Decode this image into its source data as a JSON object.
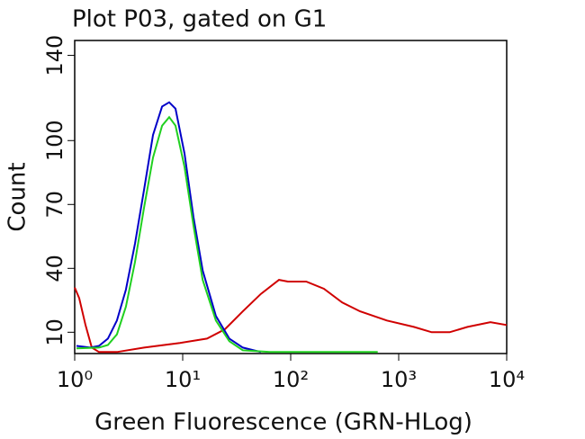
{
  "chart_data": {
    "type": "line",
    "title": "Plot P03, gated on G1",
    "x_label": "Green Fluorescence (GRN-HLog)",
    "y_label": "Count",
    "x_scale": "log",
    "xlim": [
      1,
      10000
    ],
    "xticks": [
      {
        "value": 1,
        "label": "10⁰"
      },
      {
        "value": 10,
        "label": "10¹"
      },
      {
        "value": 100,
        "label": "10²"
      },
      {
        "value": 1000,
        "label": "10³"
      },
      {
        "value": 10000,
        "label": "10⁴"
      }
    ],
    "ylim": [
      0,
      147
    ],
    "yticks": [
      10,
      40,
      70,
      100,
      140
    ],
    "series": [
      {
        "color": "#d00000",
        "x": [
          1,
          1.1,
          1.26,
          1.44,
          1.68,
          2.46,
          4.39,
          9.44,
          16.8,
          24.5,
          36,
          53,
          77.9,
          94.3,
          139,
          203,
          299,
          439,
          778,
          1380,
          2020,
          2960,
          4340,
          7060,
          10000
        ],
        "values": [
          31,
          26,
          13.4,
          2.8,
          0.7,
          0.7,
          2.8,
          5,
          7,
          11.3,
          19.8,
          28,
          34.6,
          33.8,
          33.8,
          30.4,
          24,
          19.8,
          15.5,
          12.5,
          10,
          10,
          12.5,
          14.7,
          13.4
        ]
      },
      {
        "color": "#0000c8",
        "x": [
          1.04,
          1.39,
          1.68,
          2.03,
          2.46,
          2.98,
          3.62,
          4.39,
          5.31,
          6.44,
          7.5,
          8.58,
          10.4,
          12.6,
          15.3,
          20.3,
          27,
          36,
          53
        ],
        "values": [
          3.6,
          2.8,
          3.6,
          7,
          15.5,
          30,
          51.6,
          77,
          102.6,
          116,
          118,
          115,
          94,
          64,
          39,
          17.6,
          7,
          2.8,
          0.7
        ]
      },
      {
        "color": "#20d020",
        "x": [
          1.04,
          1.68,
          2.03,
          2.46,
          2.98,
          3.62,
          4.39,
          5.31,
          6.44,
          7.5,
          8.58,
          10.4,
          12.6,
          15.3,
          20.3,
          27,
          36,
          64.3,
          640
        ],
        "values": [
          2.4,
          2.8,
          4,
          9,
          22,
          43,
          68.6,
          92,
          107,
          111,
          107,
          87.7,
          60,
          34.6,
          15.5,
          5.8,
          1.5,
          0.7,
          0.7
        ]
      }
    ]
  }
}
